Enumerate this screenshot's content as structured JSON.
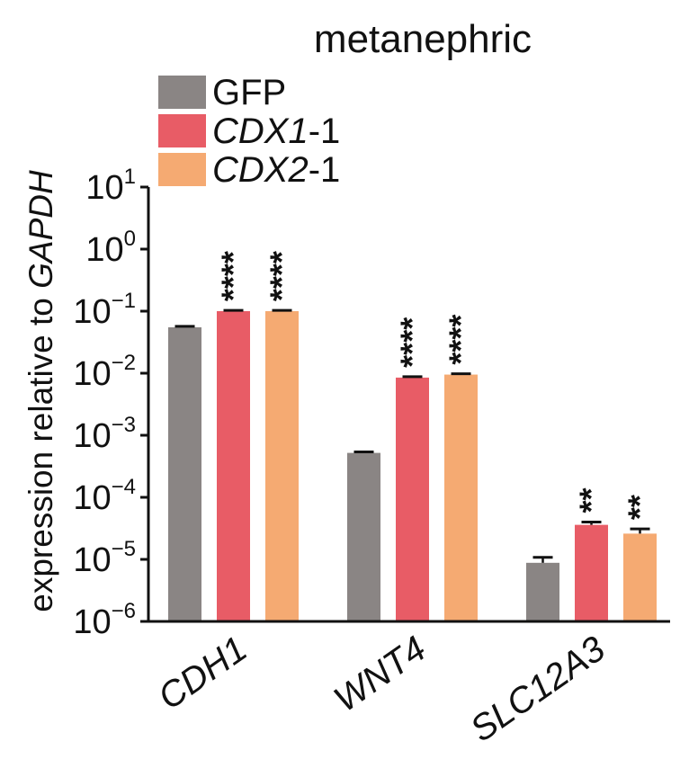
{
  "chart_data": {
    "type": "bar",
    "title": "metanephric",
    "ylabel": "expression relative to GAPDH",
    "ylabel_parts": [
      {
        "text": "expression relative to ",
        "italic": false
      },
      {
        "text": "GAPDH",
        "italic": true
      }
    ],
    "yscale": "log",
    "ylim": [
      1e-06,
      10
    ],
    "yticks": [
      {
        "exp": "1",
        "value": 10
      },
      {
        "exp": "0",
        "value": 1
      },
      {
        "exp": "−1",
        "value": 0.1
      },
      {
        "exp": "−2",
        "value": 0.01
      },
      {
        "exp": "−3",
        "value": 0.001
      },
      {
        "exp": "−4",
        "value": 0.0001
      },
      {
        "exp": "−5",
        "value": 1e-05
      },
      {
        "exp": "−6",
        "value": 1e-06
      }
    ],
    "tick_base": "10",
    "categories": [
      "CDH1",
      "WNT4",
      "SLC12A3"
    ],
    "legend_position": "top-left",
    "grid": false,
    "series": [
      {
        "name": "GFP",
        "name_parts": [
          {
            "text": "GFP",
            "italic": false
          }
        ],
        "color": "#8a8584",
        "values": [
          0.055,
          0.00052,
          8.8e-06
        ],
        "errors": [
          0.002,
          2e-05,
          2e-06
        ],
        "significance": [
          "",
          "",
          ""
        ]
      },
      {
        "name": "CDX1-1",
        "name_parts": [
          {
            "text": "CDX1",
            "italic": true
          },
          {
            "text": "-1",
            "italic": false
          }
        ],
        "color": "#e85c66",
        "values": [
          0.1,
          0.0085,
          3.6e-05
        ],
        "errors": [
          0.003,
          0.0003,
          4e-06
        ],
        "significance": [
          "****",
          "****",
          "**"
        ]
      },
      {
        "name": "CDX2-1",
        "name_parts": [
          {
            "text": "CDX2",
            "italic": true
          },
          {
            "text": "-1",
            "italic": false
          }
        ],
        "color": "#f5aa72",
        "values": [
          0.1,
          0.0095,
          2.6e-05
        ],
        "errors": [
          0.003,
          0.0003,
          5e-06
        ],
        "significance": [
          "****",
          "****",
          "**"
        ]
      }
    ]
  }
}
